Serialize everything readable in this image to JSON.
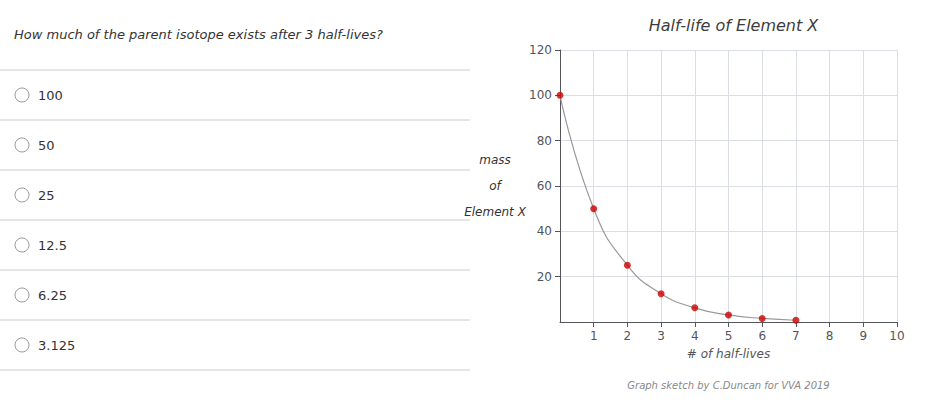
{
  "chart_data": {
    "type": "scatter",
    "title": "Half-life of Element X",
    "xlabel": "# of half-lives",
    "ylabel": "mass\nof\nElement X",
    "question": "How much of the parent isotope exists after 3 half-lives?",
    "credit": "Graph sketch by C.Duncan for VVA 2019",
    "answer_options": [
      "100",
      "50",
      "25",
      "12.5",
      "6.25",
      "3.125"
    ],
    "x": [
      0,
      1,
      2,
      3,
      4,
      5,
      6,
      7
    ],
    "series": [
      {
        "type": "line",
        "color": "#999999",
        "values": [
          100,
          50,
          25,
          12.5,
          6.25,
          3.125,
          1.5625,
          0.78125
        ]
      },
      {
        "type": "scatter",
        "color": "#cc0000",
        "marker": "circle",
        "values": [
          100,
          50,
          25,
          12.5,
          6.25,
          3.125,
          1.5625,
          0.78125
        ]
      }
    ],
    "xlim": [
      0,
      10
    ],
    "xticks": [
      1,
      2,
      3,
      4,
      5,
      6,
      7,
      8,
      9,
      10
    ],
    "ylim": [
      0,
      120
    ],
    "yticks": [
      20,
      40,
      60,
      80,
      100,
      120
    ],
    "grid": true
  }
}
